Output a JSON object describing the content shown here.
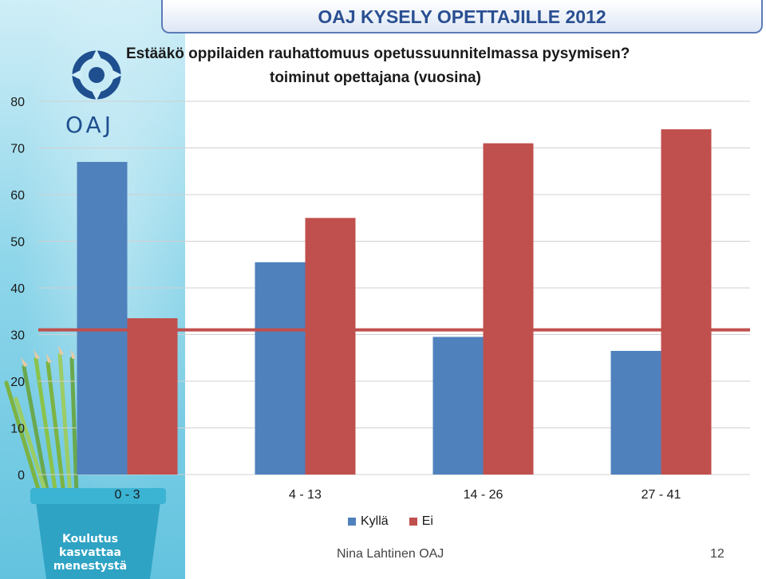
{
  "header": {
    "title": "OAJ KYSELY OPETTAJILLE 2012"
  },
  "question": "Estääkö oppilaiden rauhattomuus opetussuunnitelmassa pysymisen?",
  "sidebar": {
    "logo_text": "OAJ",
    "pot_lines": [
      "Koulutus",
      "kasvattaa",
      "menestystä"
    ]
  },
  "chart_data": {
    "type": "bar",
    "title": "toiminut opettajana (vuosina)",
    "categories": [
      "0 - 3",
      "4 - 13",
      "14 - 26",
      "27 - 41"
    ],
    "series": [
      {
        "name": "Kyllä",
        "values": [
          67,
          45.5,
          29.5,
          26.5
        ],
        "color": "#4f81bd"
      },
      {
        "name": "Ei",
        "values": [
          33.5,
          55,
          71,
          74
        ],
        "color": "#c0504d"
      }
    ],
    "ylim": [
      0,
      80
    ],
    "yticks": [
      0,
      10,
      20,
      30,
      40,
      50,
      60,
      70,
      80
    ],
    "reference_line": {
      "value": 31,
      "color": "#c0504d"
    },
    "grid": true,
    "legend_position": "bottom"
  },
  "footer": {
    "author": "Nina Lahtinen OAJ",
    "page": "12"
  }
}
